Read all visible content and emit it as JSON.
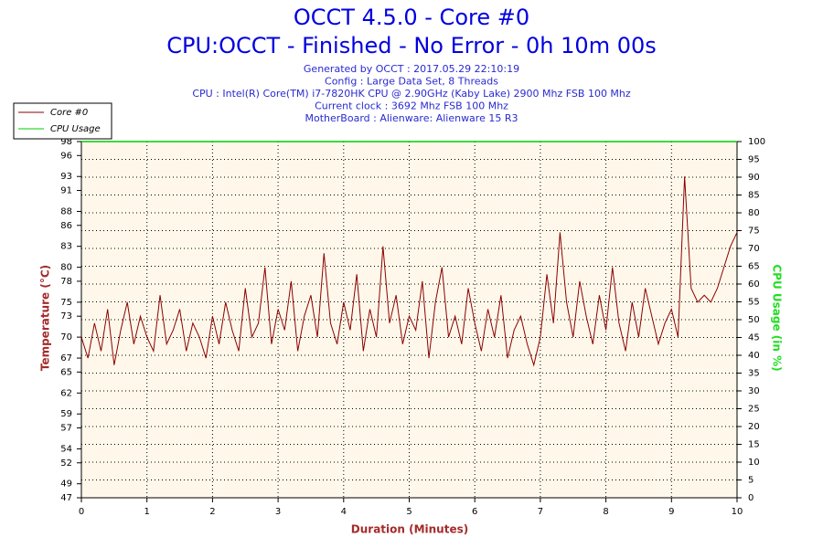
{
  "chart_data": {
    "type": "line",
    "title": "OCCT 4.5.0 - Core #0",
    "subtitle": "CPU:OCCT - Finished - No Error - 0h 10m 00s",
    "info": [
      "Generated by OCCT : 2017.05.29 22:10:19",
      "Config : Large Data Set, 8 Threads",
      "CPU : Intel(R) Core(TM) i7-7820HK CPU @ 2.90GHz (Kaby Lake) 2900 Mhz FSB 100 Mhz",
      "Current clock : 3692 Mhz FSB 100 Mhz",
      "MotherBoard : Alienware: Alienware 15 R3"
    ],
    "x_label": "Duration (Minutes)",
    "y_label": "Temperature (°C)",
    "y2_label": "CPU Usage (in %)",
    "xlim": [
      0,
      10
    ],
    "xticks": [
      0,
      1,
      2,
      3,
      4,
      5,
      6,
      7,
      8,
      9,
      10
    ],
    "ylim": [
      47,
      98
    ],
    "yticks": [
      47,
      49,
      52,
      54,
      57,
      59,
      62,
      65,
      67,
      70,
      73,
      75,
      78,
      80,
      83,
      86,
      88,
      91,
      93,
      96,
      98
    ],
    "y2lim": [
      0,
      100
    ],
    "y2ticks": [
      0,
      5,
      10,
      15,
      20,
      25,
      30,
      35,
      40,
      45,
      50,
      55,
      60,
      65,
      70,
      75,
      80,
      85,
      90,
      95,
      100
    ],
    "grid": true,
    "legend": "top-left",
    "series": [
      {
        "name": "Core #0",
        "color": "#8b0000",
        "x": [
          0,
          0.1,
          0.2,
          0.3,
          0.4,
          0.5,
          0.6,
          0.7,
          0.8,
          0.9,
          1,
          1.1,
          1.2,
          1.3,
          1.4,
          1.5,
          1.6,
          1.7,
          1.8,
          1.9,
          2,
          2.1,
          2.2,
          2.3,
          2.4,
          2.5,
          2.6,
          2.7,
          2.8,
          2.9,
          3,
          3.1,
          3.2,
          3.3,
          3.4,
          3.5,
          3.6,
          3.7,
          3.8,
          3.9,
          4,
          4.1,
          4.2,
          4.3,
          4.4,
          4.5,
          4.6,
          4.7,
          4.8,
          4.9,
          5,
          5.1,
          5.2,
          5.3,
          5.4,
          5.5,
          5.6,
          5.7,
          5.8,
          5.9,
          6,
          6.1,
          6.2,
          6.3,
          6.4,
          6.5,
          6.6,
          6.7,
          6.8,
          6.9,
          7,
          7.1,
          7.2,
          7.3,
          7.4,
          7.5,
          7.6,
          7.7,
          7.8,
          7.9,
          8,
          8.1,
          8.2,
          8.3,
          8.4,
          8.5,
          8.6,
          8.7,
          8.8,
          8.9,
          9,
          9.1,
          9.2,
          9.3,
          9.4,
          9.5,
          9.6,
          9.7,
          9.8,
          9.9,
          10
        ],
        "values": [
          70,
          67,
          72,
          68,
          74,
          66,
          71,
          75,
          69,
          73,
          70,
          68,
          76,
          69,
          71,
          74,
          68,
          72,
          70,
          67,
          73,
          69,
          75,
          71,
          68,
          77,
          70,
          72,
          80,
          69,
          74,
          71,
          78,
          68,
          73,
          76,
          70,
          82,
          72,
          69,
          75,
          71,
          79,
          68,
          74,
          70,
          83,
          72,
          76,
          69,
          73,
          71,
          78,
          67,
          75,
          80,
          70,
          73,
          69,
          77,
          72,
          68,
          74,
          70,
          76,
          67,
          71,
          73,
          69,
          66,
          70,
          79,
          72,
          85,
          75,
          70,
          78,
          73,
          69,
          76,
          71,
          80,
          72,
          68,
          75,
          70,
          77,
          73,
          69,
          72,
          74,
          70,
          93,
          77,
          75,
          76,
          75,
          77,
          80,
          83,
          85
        ]
      },
      {
        "name": "CPU Usage",
        "color": "#00cc00",
        "axis": "y2",
        "x": [
          0,
          10
        ],
        "values": [
          100,
          100
        ]
      }
    ]
  }
}
